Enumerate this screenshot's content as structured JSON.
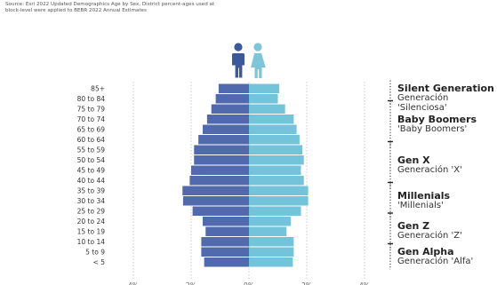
{
  "source_note": "Source: Esri 2022 Updated Demographics Age by Sex, District percent-ages used at block-level were applied to BEBR 2022 Annual Estimates",
  "colors": {
    "male": "#5169ad",
    "female": "#73c3da",
    "icon_male": "#3c5a9a",
    "icon_female": "#7cc6d8"
  },
  "chart_data": {
    "type": "bar",
    "orientation": "horizontal-population-pyramid",
    "categories": [
      "85+",
      "80 to 84",
      "75 to 79",
      "70 to 74",
      "65 to 69",
      "60 to 64",
      "55 to 59",
      "50 to 54",
      "45 to 49",
      "40 to 44",
      "35 to 39",
      "30 to 34",
      "25 to 29",
      "20 to 24",
      "15 to 19",
      "10 to 14",
      "5 to 9",
      "< 5"
    ],
    "series": [
      {
        "values": [
          -1.05,
          -1.15,
          -1.3,
          -1.45,
          -1.6,
          -1.75,
          -1.9,
          -1.9,
          -2.0,
          -2.05,
          -2.3,
          -2.28,
          -1.95,
          -1.6,
          -1.5,
          -1.65,
          -1.65,
          -1.55
        ]
      },
      {
        "values": [
          1.05,
          1.0,
          1.25,
          1.55,
          1.65,
          1.75,
          1.85,
          1.9,
          1.8,
          1.9,
          2.05,
          2.05,
          1.8,
          1.45,
          1.3,
          1.55,
          1.55,
          1.52
        ]
      }
    ],
    "x_ticks": [
      "4%",
      "2%",
      "0%",
      "2%",
      "4%"
    ],
    "xlim": [
      -4,
      4
    ],
    "grid": "vertical dotted"
  },
  "generations": [
    {
      "en": "Silent Generation",
      "es": "Generación 'Silenciosa'"
    },
    {
      "en": "Baby Boomers",
      "es": "'Baby Boomers'"
    },
    {
      "en": "Gen X",
      "es": "Generación 'X'"
    },
    {
      "en": "Millenials",
      "es": "'Millenials'"
    },
    {
      "en": "Gen Z",
      "es": "Generación 'Z'"
    },
    {
      "en": "Gen Alpha",
      "es": "Generación 'Alfa'"
    }
  ]
}
